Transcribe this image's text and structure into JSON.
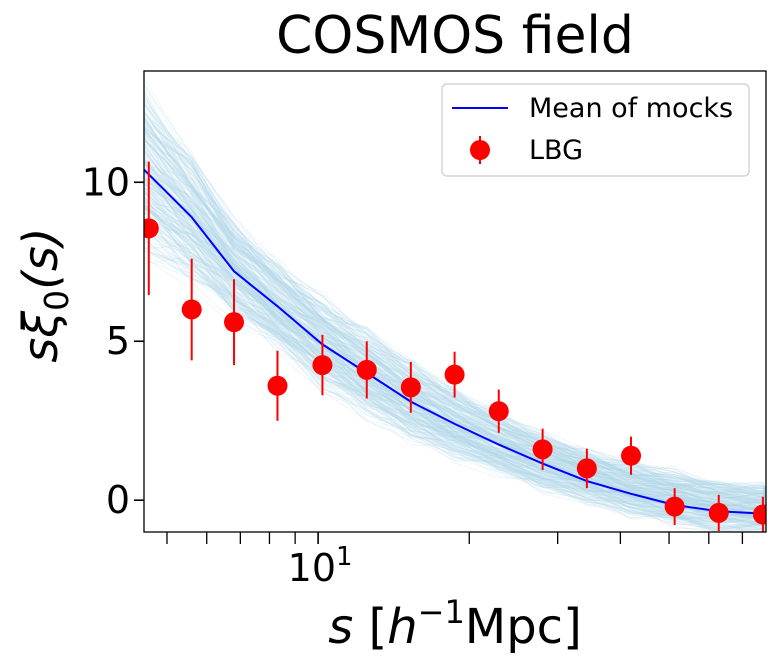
{
  "chart_data": {
    "type": "line",
    "title": "COSMOS field",
    "xlabel": {
      "var": "s",
      "open": "[",
      "unit_base": "h",
      "unit_exp": "−1",
      "unit_rest": "Mpc",
      "close": "]"
    },
    "ylabel": {
      "var1": "s",
      "var2": "ξ",
      "sub": "0",
      "arg": "(s)"
    },
    "xscale": "log",
    "xlim": [
      4.5,
      78
    ],
    "ylim": [
      -1.0,
      13.5
    ],
    "x_major_ticks": [
      {
        "value": 10,
        "base": "10",
        "exp": "1"
      }
    ],
    "x_minor_ticks": [
      5,
      6,
      7,
      8,
      9,
      20,
      30,
      40,
      50,
      60,
      70
    ],
    "y_ticks": [
      {
        "value": 0,
        "label": "0"
      },
      {
        "value": 5,
        "label": "5"
      },
      {
        "value": 10,
        "label": "10"
      }
    ],
    "legend": {
      "position": "top-right",
      "entries": [
        "Mean of mocks",
        "LBG"
      ]
    },
    "series": [
      {
        "name": "Mean of mocks",
        "color": "#0000ff",
        "x": [
          4.5,
          5.6,
          6.8,
          8.3,
          10.2,
          12.5,
          15.3,
          18.7,
          22.9,
          28.0,
          34.3,
          42.0,
          51.3,
          62.8,
          76.9,
          78.0
        ],
        "y": [
          10.4,
          8.9,
          7.2,
          6.1,
          4.9,
          4.0,
          3.1,
          2.4,
          1.75,
          1.15,
          0.6,
          0.2,
          -0.15,
          -0.35,
          -0.42,
          -0.42
        ]
      },
      {
        "name": "LBG",
        "color": "#ff0000",
        "x": [
          4.6,
          5.6,
          6.8,
          8.3,
          10.2,
          12.5,
          15.3,
          18.7,
          22.9,
          28.0,
          34.3,
          42.0,
          51.3,
          62.8,
          76.9
        ],
        "y": [
          8.55,
          6.0,
          5.6,
          3.6,
          4.25,
          4.1,
          3.55,
          3.95,
          2.8,
          1.6,
          1.0,
          1.4,
          -0.2,
          -0.4,
          -0.45
        ],
        "yerr": [
          2.1,
          1.6,
          1.35,
          1.1,
          0.95,
          0.9,
          0.8,
          0.72,
          0.68,
          0.65,
          0.62,
          0.6,
          0.58,
          0.57,
          0.56
        ]
      }
    ],
    "mock_band": {
      "name": "mocks",
      "color": "#add8e6",
      "count": 260,
      "upper_mean": [
        12.6,
        10.5,
        8.6,
        7.3,
        6.2,
        5.2,
        4.2,
        3.4,
        2.6,
        2.0,
        1.5,
        1.1,
        0.8,
        0.5,
        0.4,
        0.4
      ],
      "lower_mean": [
        8.0,
        7.1,
        5.9,
        4.9,
        3.7,
        2.8,
        2.0,
        1.4,
        0.9,
        0.4,
        0.0,
        -0.4,
        -0.7,
        -0.95,
        -1.0,
        -1.0
      ]
    }
  }
}
